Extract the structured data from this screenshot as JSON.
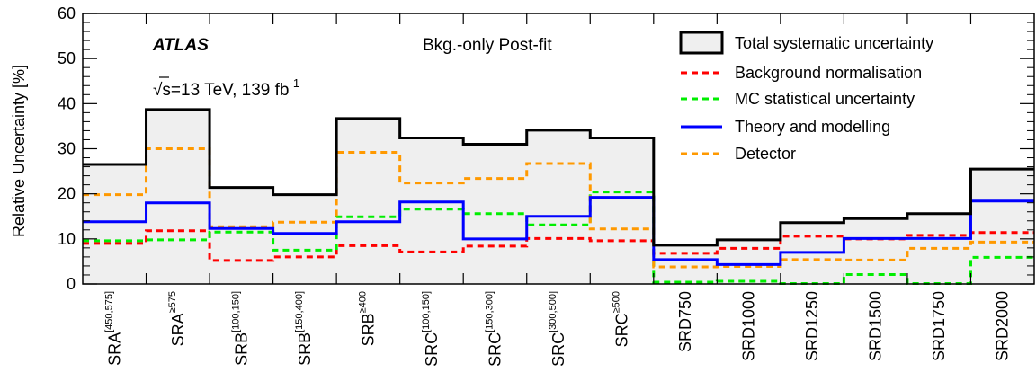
{
  "chart_data": {
    "type": "step",
    "ylabel": "Relative Uncertainty [%]",
    "ylim": [
      0,
      60
    ],
    "yticks": [
      0,
      10,
      20,
      30,
      40,
      50,
      60
    ],
    "experiment": "ATLAS",
    "energy_label": "√s=13 TeV, 139 fb",
    "energy_sup": "-1",
    "fit_label": "Bkg.-only Post-fit",
    "categories": [
      {
        "base": "SRA",
        "sup": "[450,575]"
      },
      {
        "base": "SRA",
        "sup": "≥575"
      },
      {
        "base": "SRB",
        "sup": "[100,150]"
      },
      {
        "base": "SRB",
        "sup": "[150,400]"
      },
      {
        "base": "SRB",
        "sup": "≥400"
      },
      {
        "base": "SRC",
        "sup": "[100,150]"
      },
      {
        "base": "SRC",
        "sup": "[150,300]"
      },
      {
        "base": "SRC",
        "sup": "[300,500]"
      },
      {
        "base": "SRC",
        "sup": "≥500"
      },
      {
        "base": "SRD750",
        "sup": ""
      },
      {
        "base": "SRD1000",
        "sup": ""
      },
      {
        "base": "SRD1250",
        "sup": ""
      },
      {
        "base": "SRD1500",
        "sup": ""
      },
      {
        "base": "SRD1750",
        "sup": ""
      },
      {
        "base": "SRD2000",
        "sup": ""
      }
    ],
    "series": [
      {
        "name": "Total systematic uncertainty",
        "style": "filled",
        "color": "#000000",
        "fill": "#efefef",
        "values": [
          26.5,
          38.7,
          21.4,
          19.8,
          36.7,
          32.4,
          31.0,
          34.1,
          32.4,
          8.6,
          9.8,
          13.6,
          14.5,
          15.6,
          25.5
        ]
      },
      {
        "name": "Background normalisation",
        "style": "dashed",
        "color": "#ff0000",
        "values": [
          9.0,
          11.8,
          5.2,
          6.0,
          8.5,
          7.1,
          8.4,
          10.1,
          9.6,
          6.8,
          7.9,
          10.6,
          10.0,
          10.8,
          11.4
        ]
      },
      {
        "name": "MC statistical uncertainty",
        "style": "dashed",
        "color": "#00ee00",
        "values": [
          9.6,
          9.8,
          11.5,
          7.5,
          14.9,
          16.6,
          15.6,
          13.1,
          20.4,
          0.4,
          0.6,
          0.1,
          2.1,
          0.1,
          5.9
        ]
      },
      {
        "name": "Theory and modelling",
        "style": "solid",
        "color": "#0000ff",
        "values": [
          13.8,
          18.0,
          12.3,
          11.2,
          13.8,
          18.2,
          10.0,
          15.0,
          19.2,
          5.4,
          4.3,
          7.0,
          10.1,
          10.1,
          18.4
        ]
      },
      {
        "name": "Detector",
        "style": "dashed",
        "color": "#ff9900",
        "values": [
          19.8,
          30.0,
          12.7,
          13.7,
          29.2,
          22.4,
          23.4,
          26.7,
          12.2,
          3.8,
          3.9,
          5.4,
          5.3,
          7.9,
          9.3
        ]
      }
    ],
    "legend_position": "top-right",
    "grid": false
  }
}
